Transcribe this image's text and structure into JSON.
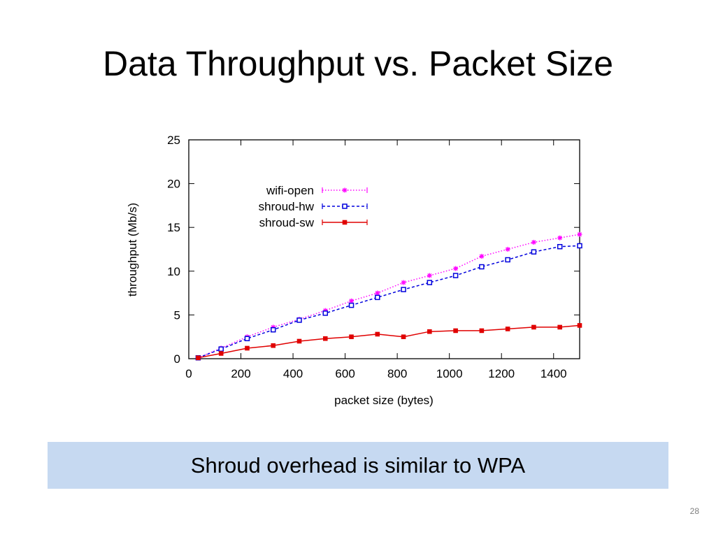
{
  "slide": {
    "title": "Data Throughput vs. Packet Size",
    "callout": "Shroud overhead is similar to WPA",
    "page_number": "28"
  },
  "colors": {
    "wifi_open": "#ff00ff",
    "shroud_hw": "#0000dd",
    "shroud_sw": "#e00000",
    "callout_bg": "#c6d9f1"
  },
  "chart_data": {
    "type": "line",
    "xlabel": "packet size (bytes)",
    "ylabel": "throughput (Mb/s)",
    "xlim": [
      0,
      1500
    ],
    "ylim": [
      0,
      25
    ],
    "xticks": [
      0,
      200,
      400,
      600,
      800,
      1000,
      1200,
      1400
    ],
    "yticks": [
      0,
      5,
      10,
      15,
      20,
      25
    ],
    "grid": false,
    "legend": "top-left",
    "series": [
      {
        "name": "wifi-open",
        "style": "dotted",
        "marker": "star",
        "points": [
          [
            36,
            0.1
          ],
          [
            124,
            1.2
          ],
          [
            224,
            2.5
          ],
          [
            324,
            3.6
          ],
          [
            424,
            4.5
          ],
          [
            524,
            5.5
          ],
          [
            624,
            6.6
          ],
          [
            724,
            7.5
          ],
          [
            824,
            8.7
          ],
          [
            924,
            9.5
          ],
          [
            1024,
            10.3
          ],
          [
            1124,
            11.7
          ],
          [
            1224,
            12.5
          ],
          [
            1324,
            13.3
          ],
          [
            1424,
            13.8
          ],
          [
            1500,
            14.2
          ]
        ]
      },
      {
        "name": "shroud-hw",
        "style": "dashed",
        "marker": "square-open",
        "points": [
          [
            36,
            0.1
          ],
          [
            124,
            1.1
          ],
          [
            224,
            2.3
          ],
          [
            324,
            3.3
          ],
          [
            424,
            4.4
          ],
          [
            524,
            5.2
          ],
          [
            624,
            6.1
          ],
          [
            724,
            7.0
          ],
          [
            824,
            7.9
          ],
          [
            924,
            8.7
          ],
          [
            1024,
            9.5
          ],
          [
            1124,
            10.5
          ],
          [
            1224,
            11.3
          ],
          [
            1324,
            12.2
          ],
          [
            1424,
            12.8
          ],
          [
            1500,
            12.9
          ]
        ]
      },
      {
        "name": "shroud-sw",
        "style": "solid",
        "marker": "square-filled",
        "points": [
          [
            36,
            0.1
          ],
          [
            124,
            0.6
          ],
          [
            224,
            1.2
          ],
          [
            324,
            1.5
          ],
          [
            424,
            2.0
          ],
          [
            524,
            2.3
          ],
          [
            624,
            2.5
          ],
          [
            724,
            2.8
          ],
          [
            824,
            2.5
          ],
          [
            924,
            3.1
          ],
          [
            1024,
            3.2
          ],
          [
            1124,
            3.2
          ],
          [
            1224,
            3.4
          ],
          [
            1324,
            3.6
          ],
          [
            1424,
            3.6
          ],
          [
            1500,
            3.8
          ]
        ]
      }
    ]
  }
}
